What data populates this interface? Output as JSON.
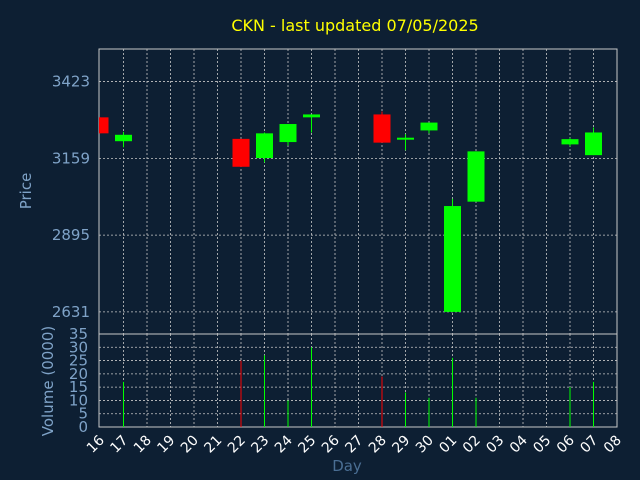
{
  "chart_data": [
    {
      "type": "candlestick",
      "title": "CKN - last updated 07/05/2025",
      "ylabel": "Price",
      "ylim": [
        2555,
        3535
      ],
      "y_ticks": [
        2631,
        2895,
        3159,
        3423
      ],
      "y_tick_labels": [
        "2631",
        "2895",
        "3159",
        "3423"
      ],
      "grid": true,
      "colors": {
        "up": "#00ff00",
        "down": "#ff0000",
        "background": "#0d1f33",
        "grid": "#c8c8c8",
        "title": "#ffff00",
        "axis_text": "#7fa3c8"
      },
      "candles": [
        {
          "x": "16",
          "open": 3300,
          "high": 3300,
          "low": 3245,
          "close": 3245
        },
        {
          "x": "17",
          "open": 3218,
          "high": 3250,
          "low": 3197,
          "close": 3240
        },
        {
          "x": "22",
          "open": 3226,
          "high": 3226,
          "low": 3130,
          "close": 3130
        },
        {
          "x": "23",
          "open": 3160,
          "high": 3248,
          "low": 3145,
          "close": 3245
        },
        {
          "x": "24",
          "open": 3215,
          "high": 3277,
          "low": 3203,
          "close": 3277
        },
        {
          "x": "25",
          "open": 3300,
          "high": 3310,
          "low": 3248,
          "close": 3310
        },
        {
          "x": "28",
          "open": 3310,
          "high": 3320,
          "low": 3213,
          "close": 3213
        },
        {
          "x": "29",
          "open": 3227,
          "high": 3242,
          "low": 3187,
          "close": 3230
        },
        {
          "x": "30",
          "open": 3255,
          "high": 3282,
          "low": 3245,
          "close": 3282
        },
        {
          "x": "01",
          "open": 2631,
          "high": 3020,
          "low": 2631,
          "close": 2995
        },
        {
          "x": "02",
          "open": 3010,
          "high": 3183,
          "low": 3010,
          "close": 3183
        },
        {
          "x": "06",
          "open": 3207,
          "high": 3230,
          "low": 3200,
          "close": 3225
        },
        {
          "x": "07",
          "open": 3170,
          "high": 3265,
          "low": 3170,
          "close": 3248
        }
      ]
    },
    {
      "type": "bar",
      "ylabel": "Volume (0000)",
      "xlabel": "Day",
      "ylim": [
        0,
        35
      ],
      "y_ticks": [
        0,
        5,
        10,
        15,
        20,
        25,
        30,
        35
      ],
      "y_tick_labels": [
        "0",
        "5",
        "10",
        "15",
        "20",
        "25",
        "30",
        "35"
      ],
      "categories": [
        "16",
        "17",
        "18",
        "19",
        "20",
        "21",
        "22",
        "23",
        "24",
        "25",
        "26",
        "27",
        "28",
        "29",
        "30",
        "01",
        "02",
        "03",
        "04",
        "05",
        "06",
        "07",
        "08"
      ],
      "values": [
        0,
        17,
        0,
        0,
        0,
        0,
        25,
        27,
        10,
        30,
        0,
        0,
        19,
        13,
        11,
        26,
        11,
        0,
        0,
        0,
        15,
        17,
        0
      ],
      "bar_colors": [
        "#00ff00",
        "#00ff00",
        "#00ff00",
        "#00ff00",
        "#00ff00",
        "#00ff00",
        "#ff0000",
        "#00ff00",
        "#00ff00",
        "#00ff00",
        "#00ff00",
        "#00ff00",
        "#ff0000",
        "#00ff00",
        "#00ff00",
        "#00ff00",
        "#00ff00",
        "#00ff00",
        "#00ff00",
        "#00ff00",
        "#00ff00",
        "#00ff00",
        "#00ff00"
      ]
    }
  ]
}
